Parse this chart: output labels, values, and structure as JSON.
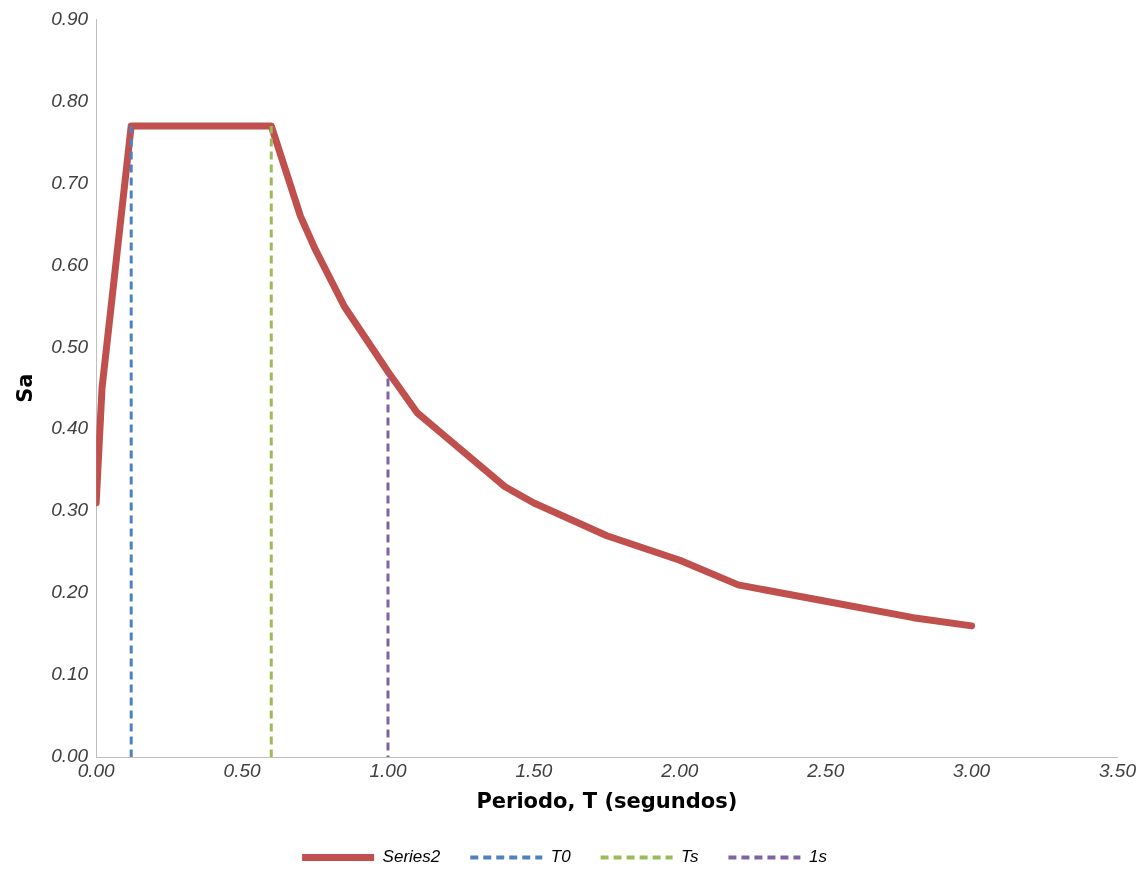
{
  "chart_data": {
    "type": "line",
    "xlabel": "Periodo, T (segundos)",
    "ylabel": "Sa",
    "xlim": [
      0,
      3.5
    ],
    "xticks": [
      {
        "value": 0,
        "label": "0.00"
      },
      {
        "value": 0.5,
        "label": "0.50"
      },
      {
        "value": 1,
        "label": "1.00"
      },
      {
        "value": 1.5,
        "label": "1.50"
      },
      {
        "value": 2,
        "label": "2.00"
      },
      {
        "value": 2.5,
        "label": "2.50"
      },
      {
        "value": 3,
        "label": "3.00"
      },
      {
        "value": 3.5,
        "label": "3.50"
      }
    ],
    "ylim": [
      0,
      0.9
    ],
    "yticks": [
      {
        "value": 0,
        "label": "0.00"
      },
      {
        "value": 0.1,
        "label": "0.10"
      },
      {
        "value": 0.2,
        "label": "0.20"
      },
      {
        "value": 0.3,
        "label": "0.30"
      },
      {
        "value": 0.4,
        "label": "0.40"
      },
      {
        "value": 0.5,
        "label": "0.50"
      },
      {
        "value": 0.6,
        "label": "0.60"
      },
      {
        "value": 0.7,
        "label": "0.70"
      },
      {
        "value": 0.8,
        "label": "0.80"
      },
      {
        "value": 0.9,
        "label": "0.90"
      }
    ],
    "grid": false,
    "legend": "bottom",
    "marker": "none",
    "series": [
      {
        "name": "Series2",
        "color": "#c0504d",
        "line_style": "solid",
        "x": [
          0,
          0.02,
          0.12,
          0.6,
          0.7,
          0.75,
          0.85,
          1.0,
          1.1,
          1.2,
          1.4,
          1.5,
          1.75,
          2.0,
          2.2,
          2.5,
          2.8,
          3.0
        ],
        "values": [
          0.31,
          0.45,
          0.77,
          0.77,
          0.66,
          0.62,
          0.55,
          0.47,
          0.42,
          0.39,
          0.33,
          0.31,
          0.27,
          0.24,
          0.21,
          0.19,
          0.17,
          0.16
        ]
      },
      {
        "name": "T0",
        "color": "#4f81bd",
        "line_style": "dashed",
        "x": [
          0.12,
          0.12
        ],
        "values": [
          0,
          0.77
        ]
      },
      {
        "name": "Ts",
        "color": "#9bbb59",
        "line_style": "dashed",
        "x": [
          0.6,
          0.6
        ],
        "values": [
          0,
          0.77
        ]
      },
      {
        "name": "1s",
        "color": "#8064a2",
        "line_style": "dashed",
        "x": [
          1.0,
          1.0
        ],
        "values": [
          0,
          0.47
        ]
      }
    ]
  }
}
